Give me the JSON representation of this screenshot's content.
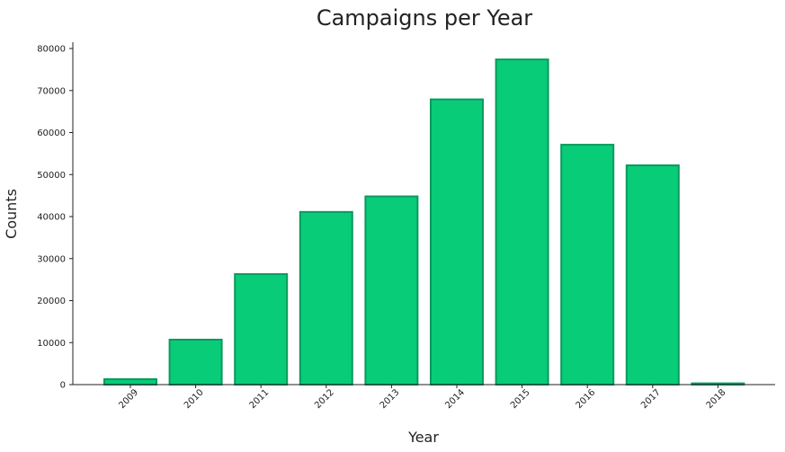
{
  "chart_data": {
    "type": "bar",
    "title": "Campaigns per Year",
    "xlabel": "Year",
    "ylabel": "Counts",
    "categories": [
      "2009",
      "2010",
      "2011",
      "2012",
      "2013",
      "2014",
      "2015",
      "2016",
      "2017",
      "2018"
    ],
    "values": [
      1300,
      10700,
      26300,
      41100,
      44800,
      67900,
      77400,
      57100,
      52200,
      300
    ],
    "ylim": [
      0,
      81500
    ],
    "yticks": [
      "0",
      "10000",
      "20000",
      "30000",
      "40000",
      "50000",
      "60000",
      "70000",
      "80000"
    ],
    "grid": false,
    "colors": {
      "bar_fill": "#08cc78",
      "bar_edge": "#0b9a5e",
      "axis": "#222222"
    }
  }
}
